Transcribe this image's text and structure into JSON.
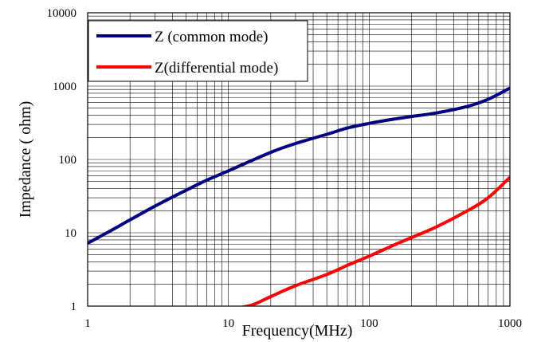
{
  "chart_data": {
    "type": "line",
    "xscale": "log",
    "yscale": "log",
    "xlim": [
      1,
      1000
    ],
    "ylim": [
      1,
      10000
    ],
    "xlabel": "Frequency(MHz)",
    "ylabel": "Impedance ( ohm)",
    "x_ticks": [
      "1",
      "10",
      "100",
      "1000"
    ],
    "y_ticks": [
      "1",
      "10",
      "100",
      "1000",
      "10000"
    ],
    "grid": true,
    "legend": "top-left",
    "series": [
      {
        "name": "Z (common mode)",
        "color": "#000080",
        "points": [
          [
            1,
            7.2
          ],
          [
            1.5,
            11
          ],
          [
            2,
            15
          ],
          [
            3,
            23
          ],
          [
            5,
            38
          ],
          [
            7,
            52
          ],
          [
            10,
            70
          ],
          [
            20,
            125
          ],
          [
            30,
            165
          ],
          [
            50,
            220
          ],
          [
            70,
            268
          ],
          [
            100,
            310
          ],
          [
            150,
            355
          ],
          [
            200,
            385
          ],
          [
            300,
            430
          ],
          [
            500,
            530
          ],
          [
            700,
            660
          ],
          [
            1000,
            940
          ]
        ]
      },
      {
        "name": "Z(differential mode)",
        "color": "#ff0000",
        "points": [
          [
            12,
            0.95
          ],
          [
            15,
            1.05
          ],
          [
            20,
            1.35
          ],
          [
            30,
            1.9
          ],
          [
            50,
            2.7
          ],
          [
            70,
            3.6
          ],
          [
            100,
            4.8
          ],
          [
            150,
            6.8
          ],
          [
            200,
            8.6
          ],
          [
            300,
            12
          ],
          [
            500,
            20
          ],
          [
            700,
            30
          ],
          [
            1000,
            57
          ]
        ]
      }
    ]
  }
}
